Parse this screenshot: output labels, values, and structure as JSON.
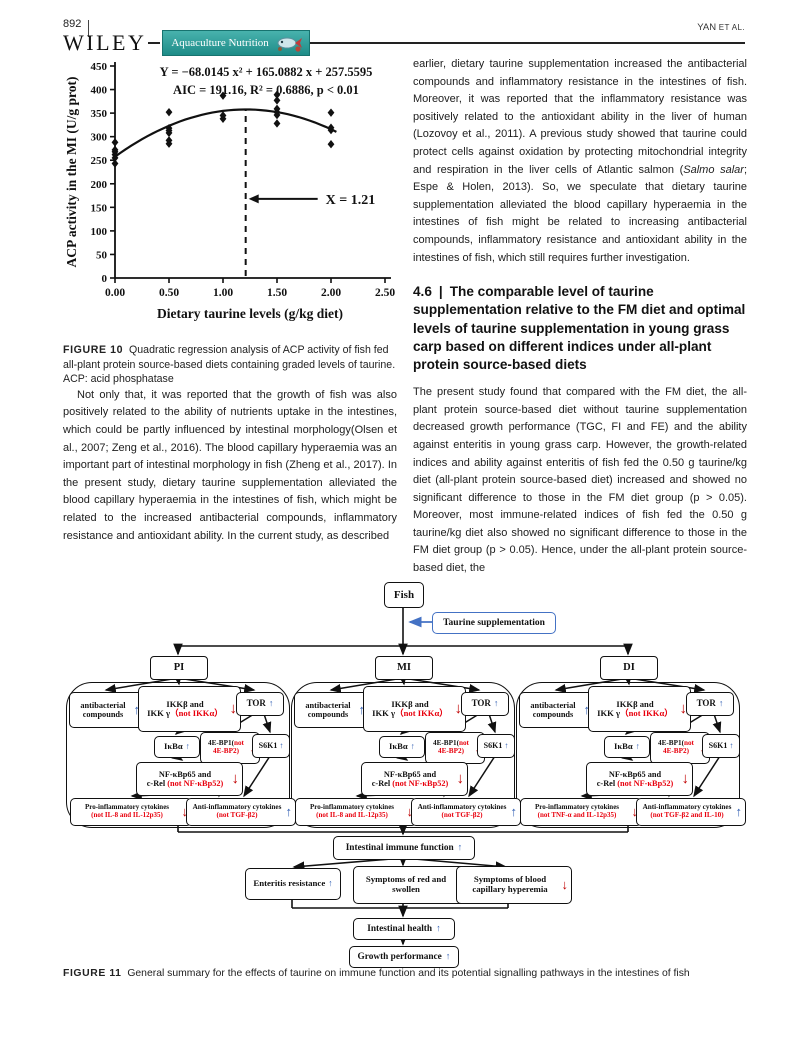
{
  "header": {
    "page_number": "892",
    "publisher": "WILEY",
    "journal": "Aquaculture Nutrition",
    "running_head_author": "YAN",
    "running_head_etal": "ET AL."
  },
  "chart_data": {
    "type": "scatter",
    "title_line1": "Y = −68.0145 x² + 165.0882 x + 257.5595",
    "title_line2": "AIC = 191.16, R² = 0.6886, p < 0.01",
    "xlabel": "Dietary taurine levels (g/kg diet)",
    "ylabel": "ACP activity in the MI (U/g prot)",
    "xlim": [
      0,
      2.5
    ],
    "ylim": [
      0,
      450
    ],
    "xticks": [
      "0.00",
      "0.50",
      "1.00",
      "1.50",
      "2.00",
      "2.50"
    ],
    "yticks": [
      0,
      50,
      100,
      150,
      200,
      250,
      300,
      350,
      400,
      450
    ],
    "grid": false,
    "marker": "diamond",
    "points": [
      {
        "x": 0.0,
        "y": 243
      },
      {
        "x": 0.0,
        "y": 255
      },
      {
        "x": 0.0,
        "y": 262
      },
      {
        "x": 0.0,
        "y": 268
      },
      {
        "x": 0.0,
        "y": 272
      },
      {
        "x": 0.0,
        "y": 288
      },
      {
        "x": 0.5,
        "y": 285
      },
      {
        "x": 0.5,
        "y": 292
      },
      {
        "x": 0.5,
        "y": 308
      },
      {
        "x": 0.5,
        "y": 313
      },
      {
        "x": 0.5,
        "y": 318
      },
      {
        "x": 0.5,
        "y": 352
      },
      {
        "x": 1.0,
        "y": 338
      },
      {
        "x": 1.0,
        "y": 345
      },
      {
        "x": 1.0,
        "y": 387
      },
      {
        "x": 1.5,
        "y": 328
      },
      {
        "x": 1.5,
        "y": 346
      },
      {
        "x": 1.5,
        "y": 352
      },
      {
        "x": 1.5,
        "y": 359
      },
      {
        "x": 1.5,
        "y": 377
      },
      {
        "x": 1.5,
        "y": 389
      },
      {
        "x": 2.0,
        "y": 284
      },
      {
        "x": 2.0,
        "y": 314
      },
      {
        "x": 2.0,
        "y": 319
      },
      {
        "x": 2.0,
        "y": 351
      }
    ],
    "fit_curve": {
      "kind": "quadratic",
      "a": -68.0145,
      "b": 165.0882,
      "c": 257.5595,
      "x_range": [
        0,
        2.05
      ]
    },
    "annotation": {
      "text": "X = 1.21",
      "x_value": 1.21,
      "y_at": 168
    }
  },
  "figure10": {
    "caption_label": "FIGURE 10",
    "caption_text": "Quadratic regression analysis of ACP activity of fish fed all-plant protein source-based diets containing graded levels of taurine. ACP: acid phosphatase"
  },
  "left_paragraph": "Not only that, it was reported that the growth of fish was also positively related to the ability of nutrients uptake in the intestines, which could be partly influenced by intestinal morphology(Olsen et al., 2007; Zeng et al., 2016). The blood capillary hyperaemia was an important part of intestinal morphology in fish (Zheng et al., 2017). In the present study, dietary taurine supplementation alleviated the blood capillary hyperaemia in the intestines of fish, which might be related to the increased antibacterial compounds, inflammatory resistance and antioxidant ability. In the current study, as described",
  "right_col": {
    "para1_pre": "earlier, dietary taurine supplementation increased the antibacterial compounds and inflammatory resistance in the intestines of fish. Moreover, it was reported that the inflammatory resistance was positively related to the antioxidant ability in the liver of human (Lozovoy et al., 2011). A previous study showed that taurine could protect cells against oxidation by protecting mitochondrial integrity and respiration in the liver cells of Atlantic salmon (",
    "para1_italic": "Salmo salar",
    "para1_post": "; Espe & Holen, 2013). So, we speculate that dietary taurine supplementation alleviated the blood capillary hyperaemia in the intestines of fish might be related to increasing antibacterial compounds, inflammatory resistance and antioxidant ability in the intestines of fish, which still requires further investigation.",
    "heading_number": "4.6",
    "heading_sep": "|",
    "heading_text": "The comparable level of taurine supplementation relative to the FM diet and optimal levels of taurine supplementation in young grass carp based on different indices under all-plant protein source-based diets",
    "para2": "The present study found that compared with the FM diet, the all-plant protein source-based diet without taurine supplementation decreased growth performance (TGC, FI and FE) and the ability against enteritis in young grass carp. However, the growth-related indices and ability against enteritis of fish fed the 0.50 g taurine/kg diet (all-plant protein source-based diet) increased and showed no significant difference to those in the FM diet group (p > 0.05). Moreover, most immune-related indices of fish fed the 0.50 g taurine/kg diet also showed no significant difference to those in the FM diet group (p > 0.05). Hence, under the all-plant protein source-based diet, the"
  },
  "diagram": {
    "fish": "Fish",
    "taurine": "Taurine supplementation",
    "up_arrow": "↑",
    "down_arrow": "↓",
    "colors": {
      "up": "#2f5db3",
      "dn": "#c00000",
      "red": "#e8000d",
      "taurine_border": "#4472c4"
    },
    "branches": [
      {
        "label": "PI",
        "ab1": "antibacterial",
        "ab2": "compounds",
        "ikk1": "IKKβ and",
        "ikk2a": "IKK γ",
        "ikk2b": "（not IKKα）",
        "tor": "TOR",
        "ikba": "IκBα",
        "ebp1a": "4E-BP1(",
        "ebp1b": "not",
        "ebp2": "4E-BP2)",
        "s6k1": "S6K1",
        "nf1": "NF-κBp65 and",
        "nf2a": "c-Rel ",
        "nf2b": "(not NF-κBp52)",
        "pro1": "Pro-inflammatory cytokines",
        "pro2": "(not IL-8 and IL-12p35)",
        "anti1": "Anti-inflammatory cytokines",
        "anti2": "(not TGF-β2)"
      },
      {
        "label": "MI",
        "ab1": "antibacterial",
        "ab2": "compounds",
        "ikk1": "IKKβ and",
        "ikk2a": "IKK γ",
        "ikk2b": "（not IKKα）",
        "tor": "TOR",
        "ikba": "IκBα",
        "ebp1a": "4E-BP1(",
        "ebp1b": "not",
        "ebp2": "4E-BP2)",
        "s6k1": "S6K1",
        "nf1": "NF-κBp65 and",
        "nf2a": "c-Rel ",
        "nf2b": "(not NF-κBp52)",
        "pro1": "Pro-inflammatory cytokines",
        "pro2": "(not IL-8 and IL-12p35)",
        "anti1": "Anti-inflammatory cytokines",
        "anti2": "(not TGF-β2)"
      },
      {
        "label": "DI",
        "ab1": "antibacterial",
        "ab2": "compounds",
        "ikk1": "IKKβ and",
        "ikk2a": "IKK γ",
        "ikk2b": "（not IKKα）",
        "tor": "TOR",
        "ikba": "IκBα",
        "ebp1a": "4E-BP1(",
        "ebp1b": "not",
        "ebp2": "4E-BP2)",
        "s6k1": "S6K1",
        "nf1": "NF-κBp65 and",
        "nf2a": "c-Rel ",
        "nf2b": "(not NF-κBp52)",
        "pro1": "Pro-inflammatory cytokines",
        "pro2": "(not TNF-α and IL-12p35)",
        "anti1": "Anti-inflammatory cytokines",
        "anti2": "(not TGF-β2 and IL-10)"
      }
    ],
    "immune": "Intestinal immune function",
    "enteritis": "Enteritis resistance",
    "red_swollen_l1": "Symptoms of red and",
    "red_swollen_l2": "swollen",
    "blood_l1": "Symptoms of blood",
    "blood_l2": "capillary hyperemia",
    "health": "Intestinal health",
    "growth": "Growth performance"
  },
  "figure11": {
    "caption_label": "FIGURE 11",
    "caption_text": "General summary for the effects of taurine on immune function and its potential signalling pathways in the intestines of fish"
  }
}
